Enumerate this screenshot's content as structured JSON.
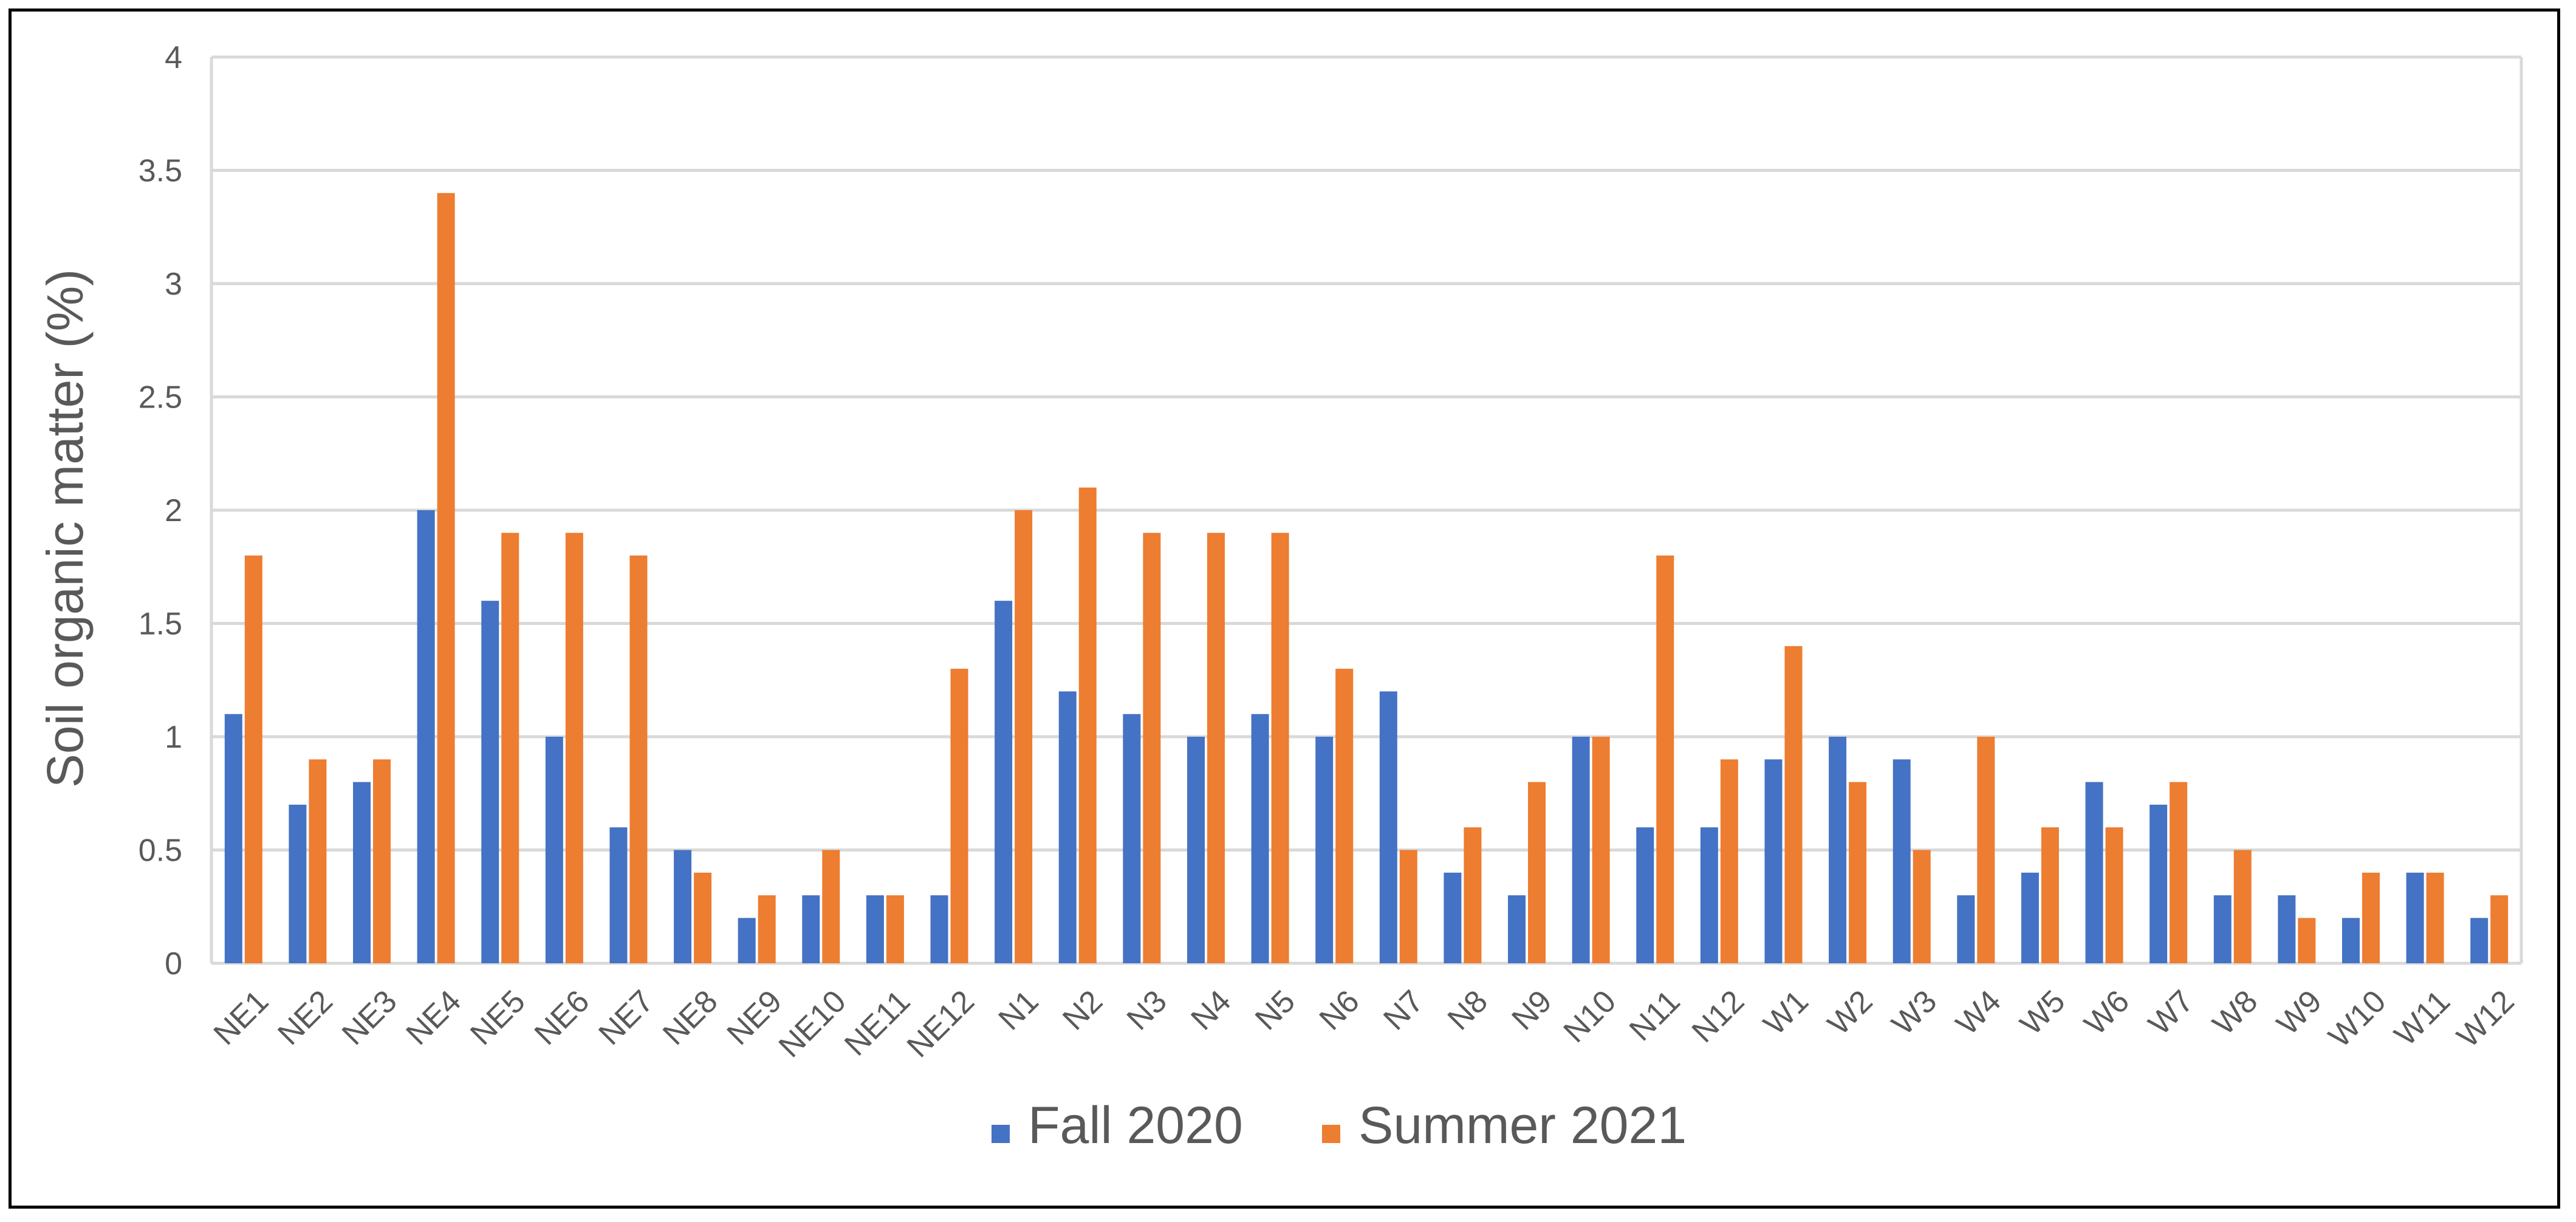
{
  "chart_data": {
    "type": "bar",
    "ylabel": "Soil organic matter (%)",
    "xlabel": "",
    "ylim": [
      0,
      4
    ],
    "yticks": [
      0,
      0.5,
      1,
      1.5,
      2,
      2.5,
      3,
      3.5,
      4
    ],
    "grid": true,
    "legend_position": "bottom",
    "categories": [
      "NE1",
      "NE2",
      "NE3",
      "NE4",
      "NE5",
      "NE6",
      "NE7",
      "NE8",
      "NE9",
      "NE10",
      "NE11",
      "NE12",
      "N1",
      "N2",
      "N3",
      "N4",
      "N5",
      "N6",
      "N7",
      "N8",
      "N9",
      "N10",
      "N11",
      "N12",
      "W1",
      "W2",
      "W3",
      "W4",
      "W5",
      "W6",
      "W7",
      "W8",
      "W9",
      "W10",
      "W11",
      "W12"
    ],
    "series": [
      {
        "name": "Fall 2020",
        "color": "#4472C4",
        "values": [
          1.1,
          0.7,
          0.8,
          2.0,
          1.6,
          1.0,
          0.6,
          0.5,
          0.2,
          0.3,
          0.3,
          0.3,
          1.6,
          1.2,
          1.1,
          1.0,
          1.1,
          1.0,
          1.2,
          0.4,
          0.3,
          1.0,
          0.6,
          0.6,
          0.9,
          1.0,
          0.9,
          0.3,
          0.4,
          0.8,
          0.7,
          0.3,
          0.3,
          0.2,
          0.4,
          0.2
        ]
      },
      {
        "name": "Summer 2021",
        "color": "#ED7D31",
        "values": [
          1.8,
          0.9,
          0.9,
          3.4,
          1.9,
          1.9,
          1.8,
          0.4,
          0.3,
          0.5,
          0.3,
          1.3,
          2.0,
          2.1,
          1.9,
          1.9,
          1.9,
          1.3,
          0.5,
          0.6,
          0.8,
          1.0,
          1.8,
          0.9,
          1.4,
          0.8,
          0.5,
          1.0,
          0.6,
          0.6,
          0.8,
          0.5,
          0.2,
          0.4,
          0.4,
          0.3
        ]
      }
    ]
  }
}
